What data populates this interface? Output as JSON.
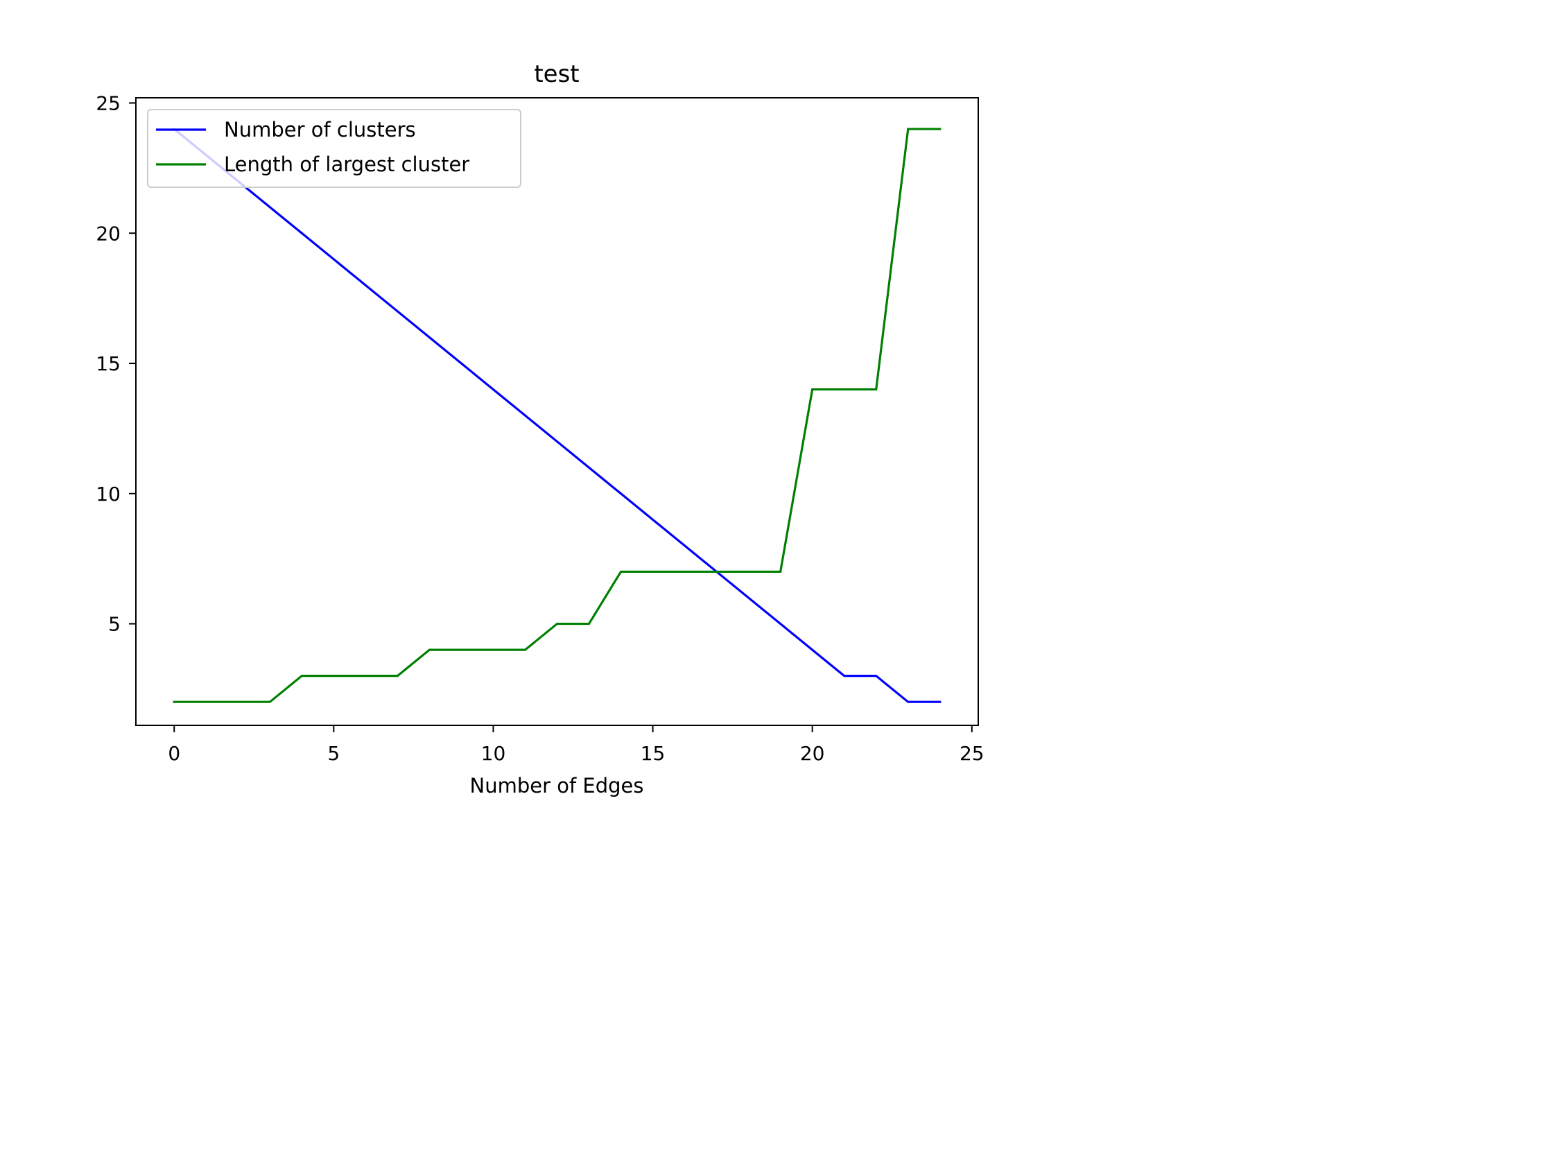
{
  "chart_data": {
    "type": "line",
    "title": "test",
    "xlabel": "Number of Edges",
    "ylabel": "",
    "xlim": [
      -1.2,
      25.2
    ],
    "ylim": [
      1.1,
      25.2
    ],
    "xticks": [
      0,
      5,
      10,
      15,
      20,
      25
    ],
    "yticks": [
      5,
      10,
      15,
      20,
      25
    ],
    "grid": false,
    "legend_position": "upper-left",
    "series": [
      {
        "name": "Number of clusters",
        "color": "#0000ff",
        "x": [
          0,
          1,
          2,
          3,
          4,
          5,
          6,
          7,
          8,
          9,
          10,
          11,
          12,
          13,
          14,
          15,
          16,
          17,
          18,
          19,
          20,
          21,
          22,
          23,
          24
        ],
        "values": [
          24,
          23,
          22,
          21,
          20,
          19,
          18,
          17,
          16,
          15,
          14,
          13,
          12,
          11,
          10,
          9,
          8,
          7,
          6,
          5,
          4,
          3,
          3,
          2,
          2
        ]
      },
      {
        "name": "Length of largest cluster",
        "color": "#008000",
        "x": [
          0,
          1,
          2,
          3,
          4,
          5,
          6,
          7,
          8,
          9,
          10,
          11,
          12,
          13,
          14,
          15,
          16,
          17,
          18,
          19,
          20,
          21,
          22,
          23,
          24
        ],
        "values": [
          2,
          2,
          2,
          2,
          3,
          3,
          3,
          3,
          4,
          4,
          4,
          4,
          5,
          5,
          7,
          7,
          7,
          7,
          7,
          7,
          14,
          14,
          14,
          24,
          24
        ]
      }
    ]
  }
}
